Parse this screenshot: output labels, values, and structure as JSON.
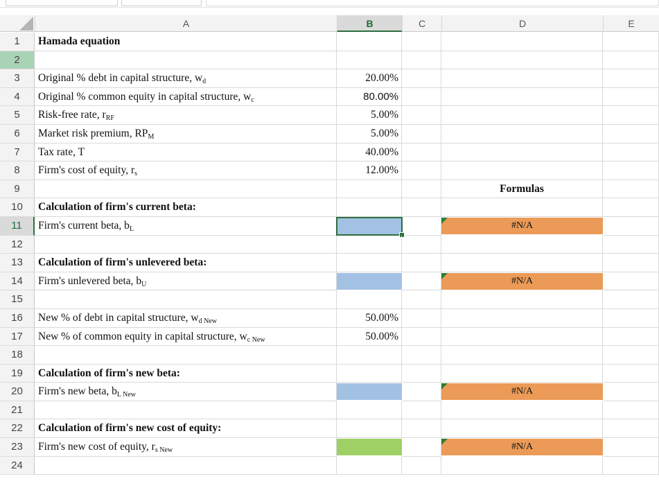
{
  "columns": [
    "A",
    "B",
    "C",
    "D",
    "E"
  ],
  "selected_column": "B",
  "selected_row": "11",
  "highlighted_row": "2",
  "rows": [
    {
      "n": "1",
      "a": "Hamada equation",
      "bold": true
    },
    {
      "n": "2"
    },
    {
      "n": "3",
      "a": "Original % debt in capital structure, w",
      "sub": "d",
      "b": "20.00%"
    },
    {
      "n": "4",
      "a": "Original % common equity in capital structure, w",
      "sub": "c",
      "b": "80.00%",
      "b_sans": true
    },
    {
      "n": "5",
      "a": "Risk-free rate, r",
      "sub": "RF",
      "b": "5.00%"
    },
    {
      "n": "6",
      "a": "Market risk premium, RP",
      "sub": "M",
      "b": "5.00%"
    },
    {
      "n": "7",
      "a": "Tax rate, T",
      "b": "40.00%"
    },
    {
      "n": "8",
      "a": "Firm's cost of equity, r",
      "sub": "s",
      "b": "12.00%"
    },
    {
      "n": "9",
      "d": "Formulas",
      "d_bold": true
    },
    {
      "n": "10",
      "a": "Calculation of firm's current beta:",
      "bold": true
    },
    {
      "n": "11",
      "a": "Firm's current beta, b",
      "sub": "L",
      "b_fill": "#a3c1e3",
      "d": "#N/A",
      "d_fill": "#eb9b57"
    },
    {
      "n": "12"
    },
    {
      "n": "13",
      "a": "Calculation of firm's unlevered beta:",
      "bold": true
    },
    {
      "n": "14",
      "a": "Firm's unlevered beta, b",
      "sub": "U",
      "b_fill": "#a3c1e3",
      "d": "#N/A",
      "d_fill": "#eb9b57"
    },
    {
      "n": "15"
    },
    {
      "n": "16",
      "a": "New % of debt in capital structure, w",
      "sub": "d New",
      "b": "50.00%"
    },
    {
      "n": "17",
      "a": "New % of common equity in capital structure, w",
      "sub": "c New",
      "b": "50.00%"
    },
    {
      "n": "18"
    },
    {
      "n": "19",
      "a": "Calculation of firm's new beta:",
      "bold": true
    },
    {
      "n": "20",
      "a": "Firm's new beta, b",
      "sub": "L New",
      "b_fill": "#a3c1e3",
      "d": "#N/A",
      "d_fill": "#eb9b57"
    },
    {
      "n": "21"
    },
    {
      "n": "22",
      "a": "Calculation of firm's new cost of equity:",
      "bold": true
    },
    {
      "n": "23",
      "a": "Firm's new cost of equity, r",
      "sub": "s New",
      "b_fill": "#9fd066",
      "d": "#N/A",
      "d_fill": "#eb9b57"
    },
    {
      "n": "24"
    }
  ]
}
